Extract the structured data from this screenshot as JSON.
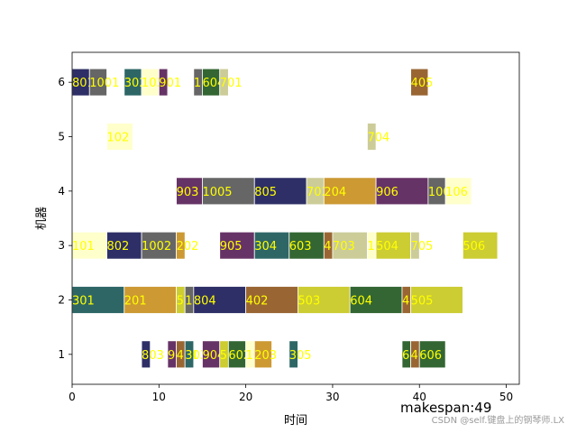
{
  "chart_data": {
    "type": "gantt",
    "xlabel": "时间",
    "ylabel": "机器",
    "xlim": [
      0,
      51.5
    ],
    "ylim": [
      0.45,
      6.55
    ],
    "xticks": [
      0,
      10,
      20,
      30,
      40,
      50
    ],
    "yticks": [
      1,
      2,
      3,
      4,
      5,
      6
    ],
    "makespan_text": "makespan:49",
    "watermark": "CSDN @self.键盘上的钢琴师.LX",
    "colors": {
      "navy": "#2e2f66",
      "gray": "#666666",
      "teal": "#2e6666",
      "cream": "#ffffcc",
      "purple": "#663366",
      "green": "#336633",
      "khaki": "#cccc99",
      "brown": "#996633",
      "gold": "#cc9933",
      "olive": "#cccc33",
      "label": "#ffff00"
    },
    "tasks": [
      {
        "machine": 6,
        "label": "801",
        "start": 0,
        "end": 2,
        "color": "navy"
      },
      {
        "machine": 6,
        "label": "1001",
        "start": 2,
        "end": 4,
        "color": "gray"
      },
      {
        "machine": 6,
        "label": "302",
        "start": 6,
        "end": 8,
        "color": "teal"
      },
      {
        "machine": 6,
        "label": "103",
        "start": 8,
        "end": 10,
        "color": "cream"
      },
      {
        "machine": 6,
        "label": "901",
        "start": 10,
        "end": 11,
        "color": "purple"
      },
      {
        "machine": 6,
        "label": "100",
        "start": 14,
        "end": 15,
        "color": "gray"
      },
      {
        "machine": 6,
        "label": "604",
        "start": 15,
        "end": 17,
        "color": "green"
      },
      {
        "machine": 6,
        "label": "701",
        "start": 17,
        "end": 18,
        "color": "khaki"
      },
      {
        "machine": 6,
        "label": "405",
        "start": 39,
        "end": 41,
        "color": "brown"
      },
      {
        "machine": 5,
        "label": "102",
        "start": 4,
        "end": 7,
        "color": "cream"
      },
      {
        "machine": 5,
        "label": "704",
        "start": 34,
        "end": 35,
        "color": "khaki"
      },
      {
        "machine": 4,
        "label": "903",
        "start": 12,
        "end": 15,
        "color": "purple"
      },
      {
        "machine": 4,
        "label": "1005",
        "start": 15,
        "end": 21,
        "color": "gray"
      },
      {
        "machine": 4,
        "label": "805",
        "start": 21,
        "end": 27,
        "color": "navy"
      },
      {
        "machine": 4,
        "label": "702",
        "start": 27,
        "end": 29,
        "color": "khaki"
      },
      {
        "machine": 4,
        "label": "204",
        "start": 29,
        "end": 35,
        "color": "gold"
      },
      {
        "machine": 4,
        "label": "906",
        "start": 35,
        "end": 41,
        "color": "purple"
      },
      {
        "machine": 4,
        "label": "1006",
        "start": 41,
        "end": 43,
        "color": "gray"
      },
      {
        "machine": 4,
        "label": "106",
        "start": 43,
        "end": 46,
        "color": "cream"
      },
      {
        "machine": 3,
        "label": "101",
        "start": 0,
        "end": 4,
        "color": "cream"
      },
      {
        "machine": 3,
        "label": "802",
        "start": 4,
        "end": 8,
        "color": "navy"
      },
      {
        "machine": 3,
        "label": "1002",
        "start": 8,
        "end": 12,
        "color": "gray"
      },
      {
        "machine": 3,
        "label": "202",
        "start": 12,
        "end": 13,
        "color": "gold"
      },
      {
        "machine": 3,
        "label": "905",
        "start": 17,
        "end": 21,
        "color": "purple"
      },
      {
        "machine": 3,
        "label": "304",
        "start": 21,
        "end": 25,
        "color": "teal"
      },
      {
        "machine": 3,
        "label": "603",
        "start": 25,
        "end": 29,
        "color": "green"
      },
      {
        "machine": 3,
        "label": "403",
        "start": 29,
        "end": 30,
        "color": "brown"
      },
      {
        "machine": 3,
        "label": "703",
        "start": 30,
        "end": 34,
        "color": "khaki"
      },
      {
        "machine": 3,
        "label": "105",
        "start": 34,
        "end": 35,
        "color": "cream"
      },
      {
        "machine": 3,
        "label": "504",
        "start": 35,
        "end": 39,
        "color": "olive"
      },
      {
        "machine": 3,
        "label": "705",
        "start": 39,
        "end": 40,
        "color": "khaki"
      },
      {
        "machine": 3,
        "label": "506",
        "start": 45,
        "end": 49,
        "color": "olive"
      },
      {
        "machine": 2,
        "label": "301",
        "start": 0,
        "end": 6,
        "color": "teal"
      },
      {
        "machine": 2,
        "label": "201",
        "start": 6,
        "end": 12,
        "color": "gold"
      },
      {
        "machine": 2,
        "label": "501",
        "start": 12,
        "end": 13,
        "color": "olive"
      },
      {
        "machine": 2,
        "label": "1003",
        "start": 13,
        "end": 14,
        "color": "gray"
      },
      {
        "machine": 2,
        "label": "804",
        "start": 14,
        "end": 20,
        "color": "navy"
      },
      {
        "machine": 2,
        "label": "402",
        "start": 20,
        "end": 26,
        "color": "brown"
      },
      {
        "machine": 2,
        "label": "503",
        "start": 26,
        "end": 32,
        "color": "olive"
      },
      {
        "machine": 2,
        "label": "604",
        "start": 32,
        "end": 38,
        "color": "green"
      },
      {
        "machine": 2,
        "label": "404",
        "start": 38,
        "end": 39,
        "color": "brown"
      },
      {
        "machine": 2,
        "label": "505",
        "start": 39,
        "end": 45,
        "color": "olive"
      },
      {
        "machine": 1,
        "label": "803",
        "start": 8,
        "end": 9,
        "color": "navy"
      },
      {
        "machine": 1,
        "label": "902",
        "start": 11,
        "end": 12,
        "color": "purple"
      },
      {
        "machine": 1,
        "label": "401",
        "start": 12,
        "end": 13,
        "color": "brown"
      },
      {
        "machine": 1,
        "label": "303",
        "start": 13,
        "end": 14,
        "color": "teal"
      },
      {
        "machine": 1,
        "label": "904",
        "start": 15,
        "end": 17,
        "color": "purple"
      },
      {
        "machine": 1,
        "label": "502",
        "start": 17,
        "end": 18,
        "color": "olive"
      },
      {
        "machine": 1,
        "label": "602",
        "start": 18,
        "end": 20,
        "color": "green"
      },
      {
        "machine": 1,
        "label": "104",
        "start": 20,
        "end": 21,
        "color": "cream"
      },
      {
        "machine": 1,
        "label": "203",
        "start": 21,
        "end": 23,
        "color": "gold"
      },
      {
        "machine": 1,
        "label": "305",
        "start": 25,
        "end": 26,
        "color": "teal"
      },
      {
        "machine": 1,
        "label": "605",
        "start": 38,
        "end": 39,
        "color": "green"
      },
      {
        "machine": 1,
        "label": "406",
        "start": 39,
        "end": 40,
        "color": "brown"
      },
      {
        "machine": 1,
        "label": "606",
        "start": 40,
        "end": 43,
        "color": "green"
      }
    ]
  }
}
